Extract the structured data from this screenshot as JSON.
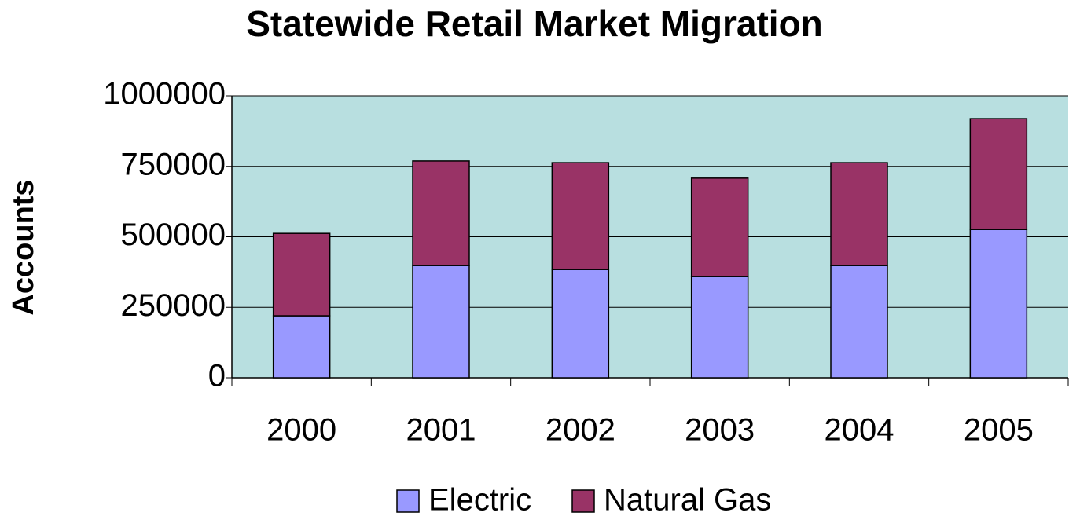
{
  "chart_data": {
    "type": "stacked-bar",
    "title": "Statewide Retail Market Migration",
    "y_label": "Accounts",
    "categories": [
      "2000",
      "2001",
      "2002",
      "2003",
      "2004",
      "2005"
    ],
    "series": [
      {
        "name": "Electric",
        "color": "#9999ff",
        "values": [
          220000,
          398000,
          384000,
          359000,
          398000,
          526000
        ]
      },
      {
        "name": "Natural Gas",
        "color": "#993366",
        "values": [
          292000,
          371000,
          379000,
          349000,
          365000,
          393000
        ]
      }
    ],
    "ylim": [
      0,
      1000000
    ],
    "yticks": [
      0,
      250000,
      500000,
      750000,
      1000000
    ],
    "grid": true,
    "legend": "bottom"
  }
}
